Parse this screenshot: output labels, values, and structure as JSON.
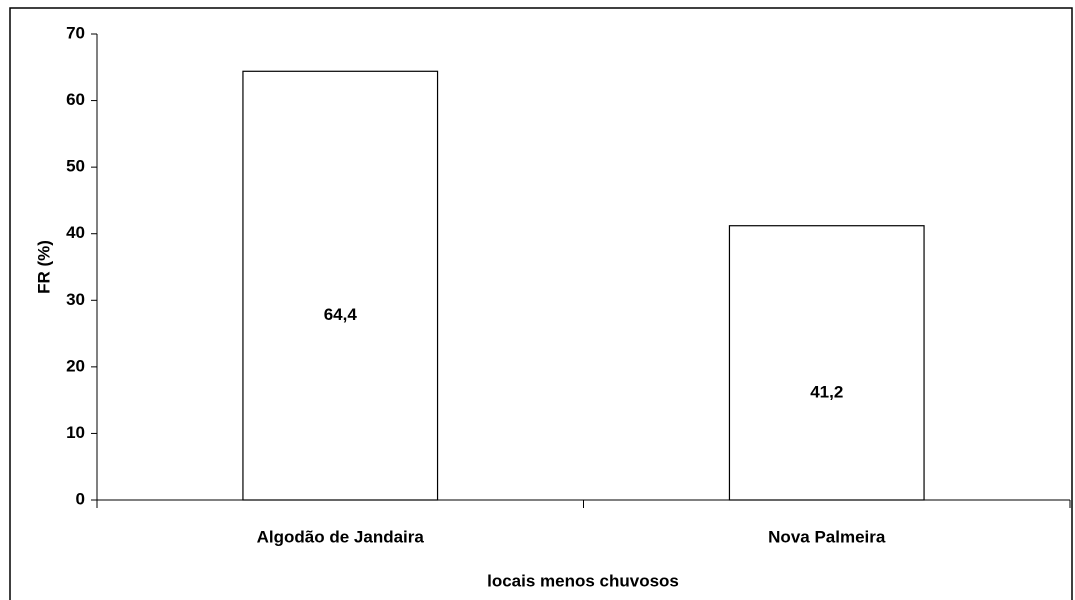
{
  "chart_data": {
    "type": "bar",
    "categories": [
      "Algodão de Jandaira",
      "Nova Palmeira"
    ],
    "values": [
      64.4,
      41.2
    ],
    "value_labels": [
      "64,4",
      "41,2"
    ],
    "color": "#ffffff",
    "xlabel": "locais menos chuvosos",
    "ylabel": "FR (%)",
    "ylim": [
      0,
      70
    ],
    "yticks": [
      0,
      10,
      20,
      30,
      40,
      50,
      60,
      70
    ],
    "grid": false
  }
}
